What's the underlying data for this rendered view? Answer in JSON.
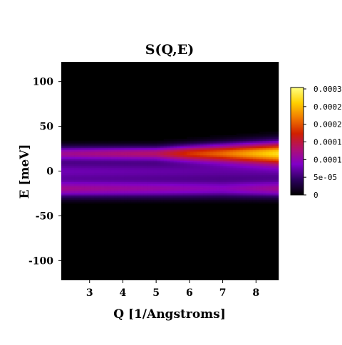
{
  "chart_data": {
    "type": "heatmap",
    "title": "S(Q,E)",
    "xlabel": "Q [1/Angstroms]",
    "ylabel": "E [meV]",
    "xlim": [
      2.15,
      8.7
    ],
    "ylim": [
      -122,
      122
    ],
    "x_ticks": [
      3,
      4,
      5,
      6,
      7,
      8
    ],
    "y_ticks": [
      100,
      50,
      0,
      -50,
      -100
    ],
    "colormap": [
      "#000000",
      "#2d0060",
      "#8000c8",
      "#b01070",
      "#d02000",
      "#f07800",
      "#ffd000",
      "#ffff80"
    ],
    "colorbar": {
      "min": 0,
      "max": 0.0003,
      "tick_labels": [
        "0.0003",
        "0.0002",
        "0.0002",
        "0.0001",
        "0.0001",
        "5e-05",
        "0"
      ]
    },
    "features": [
      {
        "band": "upper",
        "energy_center_meV": 20,
        "intensity_at_Q": {
          "2.2": 9e-05,
          "5": 0.00011,
          "6": 0.00016,
          "7": 0.00019,
          "8.7": 0.00026
        }
      },
      {
        "band": "lower",
        "energy_center_meV": -20,
        "intensity_at_Q": {
          "2.2": 9e-05,
          "5": 8e-05,
          "7": 7e-05,
          "8.7": 9e-05
        }
      },
      {
        "band": "center",
        "energy_center_meV": 0,
        "intensity_at_Q": {
          "2.2": 6e-05,
          "8.7": 5e-05
        }
      }
    ]
  }
}
